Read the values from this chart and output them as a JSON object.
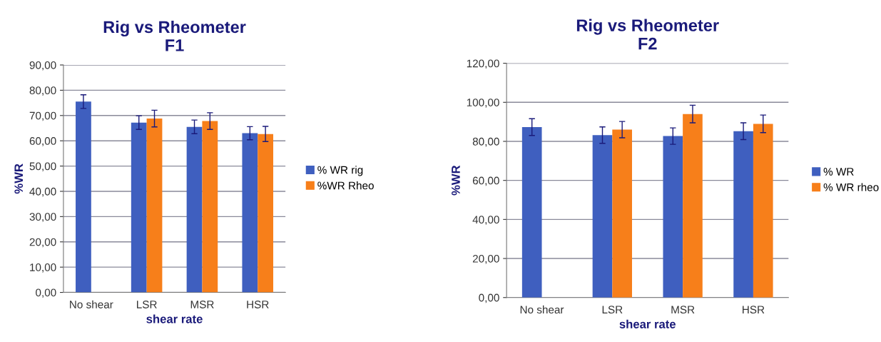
{
  "chart_data": [
    {
      "type": "bar",
      "title": "Rig vs Rheometer\nF1",
      "xlabel": "shear rate",
      "ylabel": "%WR",
      "categories": [
        "No shear",
        "LSR",
        "MSR",
        "HSR"
      ],
      "series": [
        {
          "name": "% WR rig",
          "color": "#3f5fbf",
          "values": [
            75.5,
            67.2,
            65.5,
            63.0
          ],
          "errors": [
            2.7,
            2.7,
            2.7,
            2.6
          ]
        },
        {
          "name": "%WR Rheo",
          "color": "#f77f1a",
          "values": [
            null,
            68.8,
            67.8,
            62.7
          ],
          "errors": [
            null,
            3.3,
            3.3,
            3.0
          ]
        }
      ],
      "ylim": [
        0,
        90
      ],
      "yticks": [
        {
          "value": 0,
          "label": "0,00"
        },
        {
          "value": 10,
          "label": "10,00"
        },
        {
          "value": 20,
          "label": "20,00"
        },
        {
          "value": 30,
          "label": "30,00"
        },
        {
          "value": 40,
          "label": "40,00"
        },
        {
          "value": 50,
          "label": "50,00"
        },
        {
          "value": 60,
          "label": "60,00"
        },
        {
          "value": 70,
          "label": "70,00"
        },
        {
          "value": 80,
          "label": "80,00"
        },
        {
          "value": 90,
          "label": "90,00"
        }
      ],
      "grid": "y",
      "legend": "right"
    },
    {
      "type": "bar",
      "title": "Rig vs Rheometer\nF2",
      "xlabel": "shear rate",
      "ylabel": "%WR",
      "categories": [
        "No shear",
        "LSR",
        "MSR",
        "HSR"
      ],
      "series": [
        {
          "name": "% WR",
          "color": "#3f5fbf",
          "values": [
            87.3,
            83.2,
            82.7,
            85.2
          ],
          "errors": [
            4.3,
            4.2,
            4.2,
            4.3
          ]
        },
        {
          "name": "% WR rheo",
          "color": "#f77f1a",
          "values": [
            null,
            86.0,
            94.0,
            89.0
          ],
          "errors": [
            null,
            4.2,
            4.5,
            4.5
          ]
        }
      ],
      "ylim": [
        0,
        120
      ],
      "yticks": [
        {
          "value": 0,
          "label": "0,00"
        },
        {
          "value": 20,
          "label": "20,00"
        },
        {
          "value": 40,
          "label": "40,00"
        },
        {
          "value": 60,
          "label": "60,00"
        },
        {
          "value": 80,
          "label": "80,00"
        },
        {
          "value": 100,
          "label": "100,00"
        },
        {
          "value": 120,
          "label": "120,00"
        }
      ],
      "grid": "y",
      "legend": "right"
    }
  ]
}
